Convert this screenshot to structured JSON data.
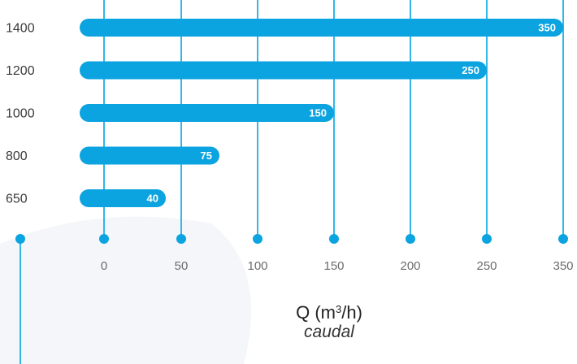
{
  "colors": {
    "bar": "#0ba3e0",
    "gridline": "#33b6e8",
    "dot": "#0ba3e0",
    "background_shape": "#f4f6f9"
  },
  "chart_data": {
    "type": "bar",
    "orientation": "horizontal",
    "categories": [
      "1400",
      "1200",
      "1000",
      "800",
      "650"
    ],
    "values": [
      350,
      250,
      150,
      75,
      40
    ],
    "x_ticks": [
      "0",
      "50",
      "100",
      "150",
      "200",
      "250",
      "350"
    ],
    "xlim": [
      0,
      350
    ],
    "grid": true,
    "xlabel": {
      "main_prefix": "Q (m",
      "main_sup": "3",
      "main_suffix": "/h)",
      "subtitle": "caudal"
    }
  }
}
